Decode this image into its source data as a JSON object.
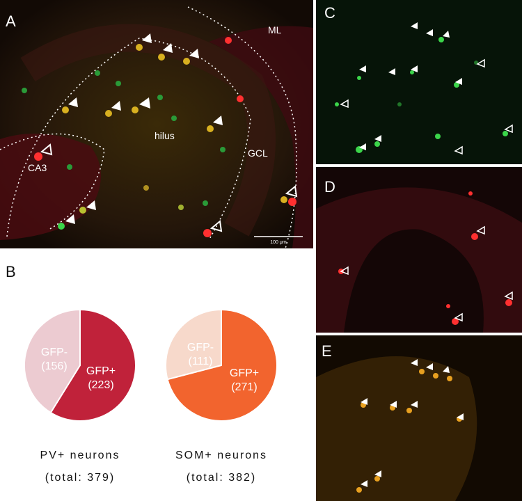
{
  "panels": {
    "a": {
      "label": "A",
      "regions": {
        "ml": "ML",
        "hilus": "hilus",
        "gcl": "GCL",
        "ca3": "CA3"
      },
      "scale_bar": "100 μm"
    },
    "b": {
      "label": "B"
    },
    "c": {
      "label": "C"
    },
    "d": {
      "label": "D"
    },
    "e": {
      "label": "E"
    }
  },
  "chart_data": [
    {
      "type": "pie",
      "slices": [
        {
          "label": "GFP-",
          "value": 156,
          "color": "#eccbd1"
        },
        {
          "label": "GFP+",
          "value": 223,
          "color": "#c0223a"
        }
      ],
      "caption": "PV+ neurons",
      "total": "(total: 379)"
    },
    {
      "type": "pie",
      "slices": [
        {
          "label": "GFP-",
          "value": 111,
          "color": "#f7d9cb"
        },
        {
          "label": "GFP+",
          "value": 271,
          "color": "#f2642e"
        }
      ],
      "caption": "SOM+ neurons",
      "total": "(total: 382)"
    }
  ],
  "pies": {
    "pv": {
      "neg_label": "GFP-",
      "neg_value": "(156)",
      "pos_label": "GFP+",
      "pos_value": "(223)",
      "caption": "PV+ neurons",
      "total": "(total: 379)"
    },
    "som": {
      "neg_label": "GFP-",
      "neg_value": "(111)",
      "pos_label": "GFP+",
      "pos_value": "(271)",
      "caption": "SOM+ neurons",
      "total": "(total: 382)"
    }
  },
  "colors": {
    "green": "#3bd54a",
    "red": "#ff3030",
    "yellow": "#e8b020"
  }
}
